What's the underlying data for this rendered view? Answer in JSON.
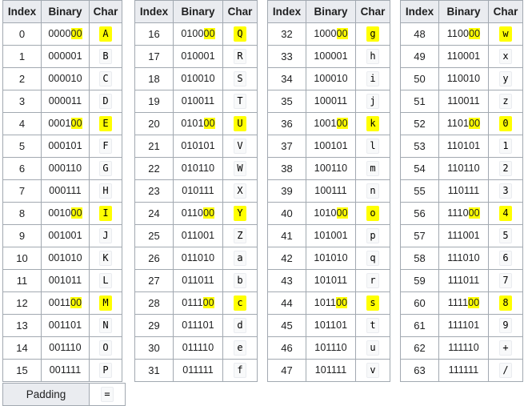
{
  "headers": {
    "index": "Index",
    "binary": "Binary",
    "char": "Char"
  },
  "highlight_color": "#ffff00",
  "groups": [
    {
      "rows": [
        {
          "i": "0",
          "b_pre": "0000",
          "b_hl": "00",
          "c": "A",
          "hl": true
        },
        {
          "i": "1",
          "b": "000001",
          "c": "B"
        },
        {
          "i": "2",
          "b": "000010",
          "c": "C"
        },
        {
          "i": "3",
          "b": "000011",
          "c": "D"
        },
        {
          "i": "4",
          "b_pre": "0001",
          "b_hl": "00",
          "c": "E",
          "hl": true
        },
        {
          "i": "5",
          "b": "000101",
          "c": "F"
        },
        {
          "i": "6",
          "b": "000110",
          "c": "G"
        },
        {
          "i": "7",
          "b": "000111",
          "c": "H"
        },
        {
          "i": "8",
          "b_pre": "0010",
          "b_hl": "00",
          "c": "I",
          "hl": true
        },
        {
          "i": "9",
          "b": "001001",
          "c": "J"
        },
        {
          "i": "10",
          "b": "001010",
          "c": "K"
        },
        {
          "i": "11",
          "b": "001011",
          "c": "L"
        },
        {
          "i": "12",
          "b_pre": "0011",
          "b_hl": "00",
          "c": "M",
          "hl": true
        },
        {
          "i": "13",
          "b": "001101",
          "c": "N"
        },
        {
          "i": "14",
          "b": "001110",
          "c": "O"
        },
        {
          "i": "15",
          "b": "001111",
          "c": "P"
        }
      ]
    },
    {
      "rows": [
        {
          "i": "16",
          "b_pre": "0100",
          "b_hl": "00",
          "c": "Q",
          "hl": true
        },
        {
          "i": "17",
          "b": "010001",
          "c": "R"
        },
        {
          "i": "18",
          "b": "010010",
          "c": "S"
        },
        {
          "i": "19",
          "b": "010011",
          "c": "T"
        },
        {
          "i": "20",
          "b_pre": "0101",
          "b_hl": "00",
          "c": "U",
          "hl": true
        },
        {
          "i": "21",
          "b": "010101",
          "c": "V"
        },
        {
          "i": "22",
          "b": "010110",
          "c": "W"
        },
        {
          "i": "23",
          "b": "010111",
          "c": "X"
        },
        {
          "i": "24",
          "b_pre": "0110",
          "b_hl": "00",
          "c": "Y",
          "hl": true
        },
        {
          "i": "25",
          "b": "011001",
          "c": "Z"
        },
        {
          "i": "26",
          "b": "011010",
          "c": "a"
        },
        {
          "i": "27",
          "b": "011011",
          "c": "b"
        },
        {
          "i": "28",
          "b_pre": "0111",
          "b_hl": "00",
          "c": "c",
          "hl": true
        },
        {
          "i": "29",
          "b": "011101",
          "c": "d"
        },
        {
          "i": "30",
          "b": "011110",
          "c": "e"
        },
        {
          "i": "31",
          "b": "011111",
          "c": "f"
        }
      ]
    },
    {
      "rows": [
        {
          "i": "32",
          "b_pre": "1000",
          "b_hl": "00",
          "c": "g",
          "hl": true
        },
        {
          "i": "33",
          "b": "100001",
          "c": "h"
        },
        {
          "i": "34",
          "b": "100010",
          "c": "i"
        },
        {
          "i": "35",
          "b": "100011",
          "c": "j"
        },
        {
          "i": "36",
          "b_pre": "1001",
          "b_hl": "00",
          "c": "k",
          "hl": true
        },
        {
          "i": "37",
          "b": "100101",
          "c": "l"
        },
        {
          "i": "38",
          "b": "100110",
          "c": "m"
        },
        {
          "i": "39",
          "b": "100111",
          "c": "n"
        },
        {
          "i": "40",
          "b_pre": "1010",
          "b_hl": "00",
          "c": "o",
          "hl": true
        },
        {
          "i": "41",
          "b": "101001",
          "c": "p"
        },
        {
          "i": "42",
          "b": "101010",
          "c": "q"
        },
        {
          "i": "43",
          "b": "101011",
          "c": "r"
        },
        {
          "i": "44",
          "b_pre": "1011",
          "b_hl": "00",
          "c": "s",
          "hl": true
        },
        {
          "i": "45",
          "b": "101101",
          "c": "t"
        },
        {
          "i": "46",
          "b": "101110",
          "c": "u"
        },
        {
          "i": "47",
          "b": "101111",
          "c": "v"
        }
      ]
    },
    {
      "rows": [
        {
          "i": "48",
          "b_pre": "1100",
          "b_hl": "00",
          "c": "w",
          "hl": true
        },
        {
          "i": "49",
          "b": "110001",
          "c": "x"
        },
        {
          "i": "50",
          "b": "110010",
          "c": "y"
        },
        {
          "i": "51",
          "b": "110011",
          "c": "z"
        },
        {
          "i": "52",
          "b_pre": "1101",
          "b_hl": "00",
          "c": "0",
          "hl": true
        },
        {
          "i": "53",
          "b": "110101",
          "c": "1"
        },
        {
          "i": "54",
          "b": "110110",
          "c": "2"
        },
        {
          "i": "55",
          "b": "110111",
          "c": "3"
        },
        {
          "i": "56",
          "b_pre": "1110",
          "b_hl": "00",
          "c": "4",
          "hl": true
        },
        {
          "i": "57",
          "b": "111001",
          "c": "5"
        },
        {
          "i": "58",
          "b": "111010",
          "c": "6"
        },
        {
          "i": "59",
          "b": "111011",
          "c": "7"
        },
        {
          "i": "60",
          "b_pre": "1111",
          "b_hl": "00",
          "c": "8",
          "hl": true
        },
        {
          "i": "61",
          "b": "111101",
          "c": "9"
        },
        {
          "i": "62",
          "b": "111110",
          "c": "+"
        },
        {
          "i": "63",
          "b": "111111",
          "c": "/"
        }
      ]
    }
  ],
  "padding": {
    "label": "Padding",
    "char": "="
  }
}
